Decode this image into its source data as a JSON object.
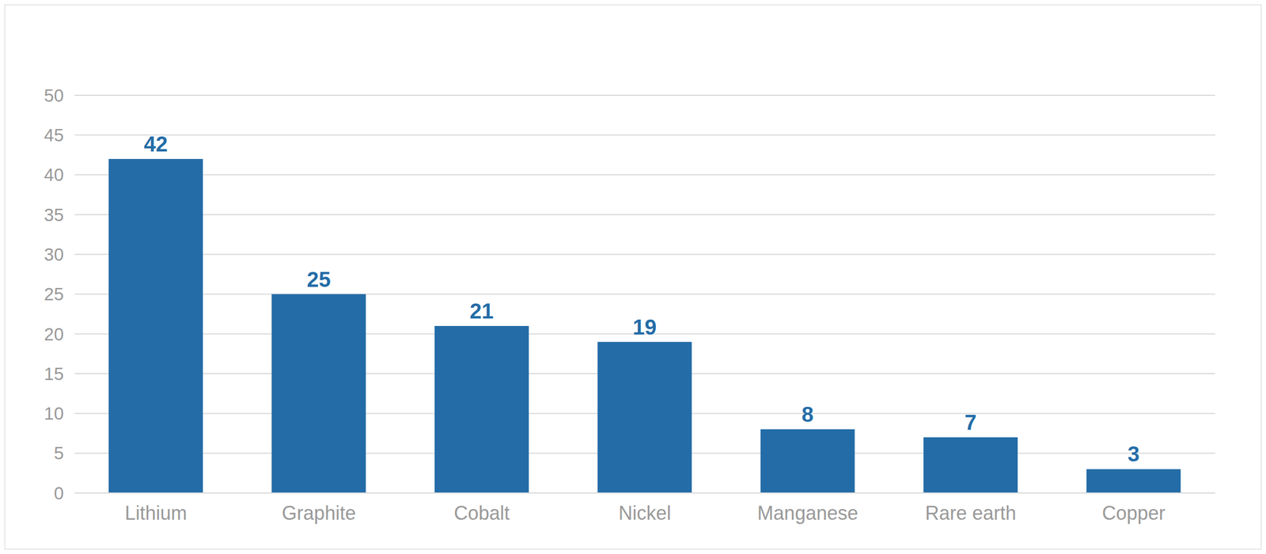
{
  "chart_data": {
    "type": "bar",
    "categories": [
      "Lithium",
      "Graphite",
      "Cobalt",
      "Nickel",
      "Manganese",
      "Rare earth",
      "Copper"
    ],
    "values": [
      42,
      25,
      21,
      19,
      8,
      7,
      3
    ],
    "color": "#236ca7",
    "ylim": [
      0,
      50
    ],
    "yticks": [
      0,
      5,
      10,
      15,
      20,
      25,
      30,
      35,
      40,
      45,
      50
    ],
    "grid": true,
    "data_labels": true
  }
}
